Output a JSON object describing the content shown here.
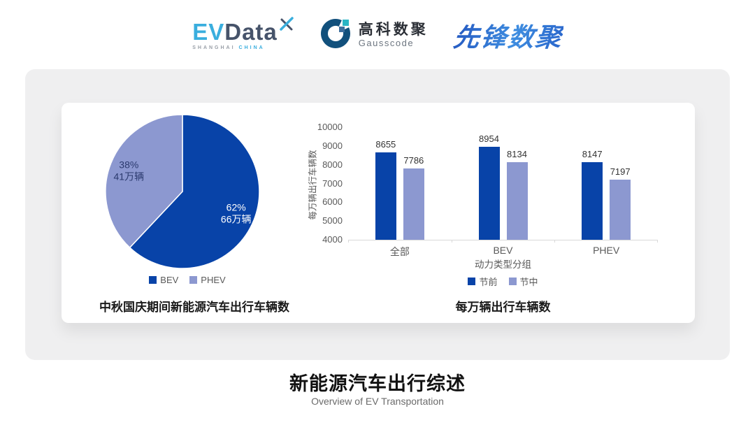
{
  "header": {
    "evdata_logo": {
      "part1": "EV",
      "part2": "Data",
      "sub1": "SHANGHAI",
      "sub2": "CHINA"
    },
    "gausscode_logo": {
      "name_cn": "高科数聚",
      "name_en": "Gausscode"
    },
    "pioneer_logo": {
      "text": "先锋数聚"
    }
  },
  "colors": {
    "primary_dark_blue": "#0843a8",
    "secondary_light_blue": "#8c98d0",
    "panel_gray": "#efeff0",
    "axis_gray": "#d9d9d9",
    "text_gray": "#595959",
    "evdata_cyan": "#3aaede",
    "evdata_slate": "#46536a",
    "gauss_navy": "#11507c",
    "gauss_teal": "#2ab5c4",
    "pioneer_blue": "#2f6fd4"
  },
  "chart_data": [
    {
      "type": "pie",
      "title": "中秋国庆期间新能源汽车出行车辆数",
      "start_angle": "top",
      "direction": "clockwise",
      "legend_position": "bottom",
      "slices": [
        {
          "label": "BEV",
          "percent": 62,
          "value_label": "66万辆",
          "color": "#0843a8",
          "label_color": "#ffffff"
        },
        {
          "label": "PHEV",
          "percent": 38,
          "value_label": "41万辆",
          "color": "#8c98d0",
          "label_color": "#2b3a6e"
        }
      ]
    },
    {
      "type": "bar",
      "title": "每万辆出行车辆数",
      "xlabel": "动力类型分组",
      "ylabel": "每万辆出行车辆数",
      "categories": [
        "全部",
        "BEV",
        "PHEV"
      ],
      "series": [
        {
          "name": "节前",
          "color": "#0843a8",
          "values": [
            8655,
            8954,
            8147
          ]
        },
        {
          "name": "节中",
          "color": "#8c98d0",
          "values": [
            7786,
            8134,
            7197
          ]
        }
      ],
      "ylim": [
        4000,
        10000
      ],
      "yticks": [
        4000,
        5000,
        6000,
        7000,
        8000,
        9000,
        10000
      ],
      "grid": false,
      "bar_labels": true,
      "legend_position": "bottom"
    }
  ],
  "footer": {
    "title": "新能源汽车出行综述",
    "subtitle": "Overview of EV Transportation"
  }
}
